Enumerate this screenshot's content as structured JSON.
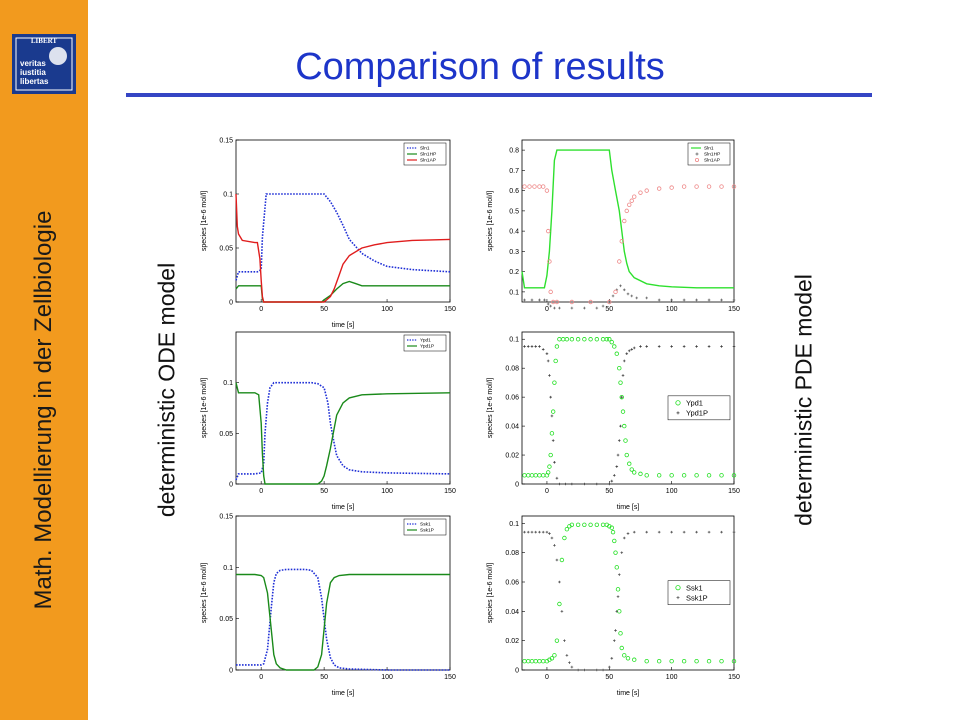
{
  "slide": {
    "title": "Comparison of results",
    "sidebar_text": "Math. Modellierung in der Zellbiologie",
    "logo_motto": [
      "veritas",
      "iustitia",
      "libertas"
    ],
    "logo_banner": "LIBERT",
    "left_label": "deterministic ODE model",
    "right_label": "deterministic PDE model",
    "colors": {
      "sidebar": "#f29a1e",
      "title": "#1d35c9",
      "rule": "#3545c4"
    }
  },
  "chart_data": [
    {
      "id": "ode-sln1",
      "type": "line",
      "xlabel": "time [s]",
      "ylabel": "species [1e-6 mol/l]",
      "xlim": [
        -20,
        150
      ],
      "ylim": [
        0,
        0.15
      ],
      "xticks": [
        0,
        50,
        100,
        150
      ],
      "yticks": [
        0,
        0.05,
        0.1,
        0.15
      ],
      "grid": false,
      "legend": "top-right",
      "series": [
        {
          "name": "Sln1",
          "style": "dotted",
          "color": "#1f2fd6",
          "x": [
            -20,
            -18,
            -10,
            -3,
            0,
            1,
            4,
            6,
            10,
            40,
            50,
            55,
            60,
            65,
            70,
            80,
            90,
            100,
            120,
            150
          ],
          "y": [
            0.02,
            0.028,
            0.028,
            0.028,
            0.03,
            0.06,
            0.1,
            0.1,
            0.1,
            0.1,
            0.1,
            0.093,
            0.083,
            0.071,
            0.058,
            0.045,
            0.038,
            0.033,
            0.03,
            0.028
          ]
        },
        {
          "name": "Sln1HP",
          "style": "solid",
          "color": "#1a8a1a",
          "x": [
            -20,
            -18,
            -3,
            0,
            1,
            2,
            5,
            48,
            50,
            55,
            60,
            65,
            70,
            75,
            80,
            100,
            150
          ],
          "y": [
            0.012,
            0.015,
            0.015,
            0.015,
            0.003,
            0,
            0,
            0,
            0.002,
            0.006,
            0.012,
            0.017,
            0.019,
            0.017,
            0.015,
            0.015,
            0.015
          ]
        },
        {
          "name": "Sln1AP",
          "style": "solid",
          "color": "#e01d1d",
          "x": [
            -20,
            -19,
            -18,
            -15,
            -5,
            -3,
            -1,
            0,
            1,
            2,
            50,
            55,
            58,
            62,
            65,
            70,
            80,
            90,
            100,
            120,
            150
          ],
          "y": [
            0.1,
            0.07,
            0.063,
            0.057,
            0.055,
            0.055,
            0.04,
            0.02,
            0.005,
            0,
            0,
            0.005,
            0.012,
            0.025,
            0.035,
            0.043,
            0.05,
            0.053,
            0.055,
            0.057,
            0.058
          ]
        }
      ]
    },
    {
      "id": "ode-ypd1",
      "type": "line",
      "xlabel": "time [s]",
      "ylabel": "species [1e-6 mol/l]",
      "xlim": [
        -20,
        150
      ],
      "ylim": [
        0,
        0.15
      ],
      "xticks": [
        0,
        50,
        100,
        150
      ],
      "yticks": [
        0,
        0.05,
        0.1
      ],
      "grid": false,
      "legend": "top-right",
      "series": [
        {
          "name": "Ypd1",
          "style": "dotted",
          "color": "#1f2fd6",
          "x": [
            -20,
            -18,
            -5,
            0,
            2,
            3,
            5,
            7,
            10,
            40,
            45,
            50,
            53,
            55,
            58,
            60,
            65,
            70,
            80,
            100,
            150
          ],
          "y": [
            0.004,
            0.01,
            0.01,
            0.011,
            0.02,
            0.05,
            0.08,
            0.095,
            0.1,
            0.1,
            0.099,
            0.095,
            0.08,
            0.06,
            0.04,
            0.028,
            0.018,
            0.014,
            0.012,
            0.011,
            0.01
          ]
        },
        {
          "name": "Ypd1P",
          "style": "solid",
          "color": "#1a8a1a",
          "x": [
            -20,
            -18,
            -5,
            -2,
            0,
            1,
            2,
            3,
            5,
            45,
            48,
            50,
            52,
            55,
            58,
            60,
            65,
            70,
            80,
            100,
            150
          ],
          "y": [
            0.1,
            0.09,
            0.09,
            0.088,
            0.06,
            0.03,
            0.008,
            0,
            0,
            0,
            0.003,
            0.008,
            0.018,
            0.035,
            0.055,
            0.068,
            0.08,
            0.085,
            0.088,
            0.089,
            0.09
          ]
        }
      ]
    },
    {
      "id": "ode-ssk1",
      "type": "line",
      "xlabel": "time [s]",
      "ylabel": "species [1e-6 mol/l]",
      "xlim": [
        -20,
        150
      ],
      "ylim": [
        0,
        0.15
      ],
      "xticks": [
        0,
        50,
        100,
        150
      ],
      "yticks": [
        0,
        0.05,
        0.1,
        0.15
      ],
      "grid": false,
      "legend": "top-right",
      "series": [
        {
          "name": "Ssk1",
          "style": "dotted",
          "color": "#1f2fd6",
          "x": [
            -20,
            -15,
            -5,
            0,
            2,
            5,
            8,
            10,
            12,
            15,
            20,
            35,
            40,
            45,
            48,
            50,
            52,
            55,
            58,
            62,
            70,
            100,
            150
          ],
          "y": [
            0.005,
            0.005,
            0.005,
            0.005,
            0.006,
            0.02,
            0.06,
            0.085,
            0.094,
            0.097,
            0.098,
            0.098,
            0.097,
            0.09,
            0.07,
            0.05,
            0.03,
            0.012,
            0.005,
            0.002,
            0.001,
            0,
            0
          ]
        },
        {
          "name": "Ssk1P",
          "style": "solid",
          "color": "#1a8a1a",
          "x": [
            -20,
            -15,
            -5,
            0,
            2,
            5,
            8,
            10,
            12,
            15,
            20,
            42,
            45,
            48,
            50,
            52,
            55,
            58,
            62,
            70,
            100,
            150
          ],
          "y": [
            0.093,
            0.093,
            0.093,
            0.092,
            0.09,
            0.075,
            0.04,
            0.015,
            0.006,
            0.002,
            0,
            0,
            0.003,
            0.015,
            0.04,
            0.065,
            0.085,
            0.09,
            0.092,
            0.093,
            0.093,
            0.093
          ]
        }
      ]
    },
    {
      "id": "pde-sln1",
      "type": "line",
      "xlabel": "",
      "ylabel": "species [1e-6 mol/l]",
      "xlim": [
        -20,
        150
      ],
      "ylim": [
        0.05,
        0.85
      ],
      "xticks": [
        0,
        50,
        100,
        150
      ],
      "yticks": [
        0.1,
        0.2,
        0.3,
        0.4,
        0.5,
        0.6,
        0.7,
        0.8
      ],
      "grid": false,
      "legend": "top-right",
      "series": [
        {
          "name": "Sln1",
          "style": "solid",
          "color": "#2ee02e",
          "x": [
            -20,
            -18,
            -2,
            0,
            2,
            4,
            6,
            8,
            12,
            50,
            52,
            55,
            58,
            60,
            62,
            64,
            66,
            70,
            80,
            90,
            100,
            120,
            150
          ],
          "y": [
            0.2,
            0.12,
            0.12,
            0.18,
            0.3,
            0.5,
            0.75,
            0.8,
            0.8,
            0.8,
            0.7,
            0.6,
            0.5,
            0.4,
            0.3,
            0.24,
            0.2,
            0.17,
            0.14,
            0.13,
            0.125,
            0.12,
            0.12
          ]
        },
        {
          "name": "Sln1HP",
          "style": "markers",
          "marker": "star",
          "color": "#555555",
          "x": [
            -18,
            -12,
            -6,
            -2,
            1,
            3,
            6,
            10,
            20,
            30,
            40,
            45,
            50,
            53,
            56,
            59,
            62,
            65,
            68,
            72,
            80,
            90,
            100,
            110,
            120,
            130,
            140,
            150
          ],
          "y": [
            0.06,
            0.06,
            0.06,
            0.06,
            0.04,
            0.03,
            0.02,
            0.02,
            0.02,
            0.02,
            0.02,
            0.03,
            0.05,
            0.08,
            0.11,
            0.13,
            0.11,
            0.09,
            0.08,
            0.07,
            0.07,
            0.06,
            0.06,
            0.06,
            0.06,
            0.06,
            0.06,
            0.06
          ]
        },
        {
          "name": "Sln1AP",
          "style": "markers",
          "marker": "circle",
          "color": "#ee8888",
          "x": [
            -18,
            -14,
            -10,
            -6,
            -3,
            0,
            1,
            2,
            3,
            5,
            8,
            20,
            35,
            50,
            55,
            58,
            60,
            62,
            64,
            66,
            68,
            70,
            75,
            80,
            90,
            100,
            110,
            120,
            130,
            140,
            150
          ],
          "y": [
            0.62,
            0.62,
            0.62,
            0.62,
            0.62,
            0.6,
            0.4,
            0.25,
            0.1,
            0.05,
            0.05,
            0.05,
            0.05,
            0.05,
            0.1,
            0.25,
            0.35,
            0.45,
            0.5,
            0.53,
            0.55,
            0.57,
            0.59,
            0.6,
            0.61,
            0.615,
            0.62,
            0.62,
            0.62,
            0.62,
            0.62
          ]
        }
      ]
    },
    {
      "id": "pde-ypd1",
      "type": "line",
      "xlabel": "time [s]",
      "ylabel": "species [1e-6 mol/l]",
      "xlim": [
        -20,
        150
      ],
      "ylim": [
        0,
        0.105
      ],
      "xticks": [
        0,
        50,
        100,
        150
      ],
      "yticks": [
        0,
        0.02,
        0.04,
        0.06,
        0.08,
        0.1
      ],
      "grid": false,
      "legend": "center-right",
      "series": [
        {
          "name": "Ypd1",
          "style": "markers",
          "marker": "circle",
          "color": "#22e022",
          "x": [
            -18,
            -15,
            -12,
            -9,
            -6,
            -3,
            0,
            1,
            2,
            3,
            4,
            5,
            6,
            7,
            8,
            10,
            13,
            16,
            20,
            25,
            30,
            35,
            40,
            45,
            48,
            50,
            52,
            54,
            56,
            58,
            59,
            60,
            61,
            62,
            63,
            64,
            66,
            68,
            70,
            75,
            80,
            90,
            100,
            110,
            120,
            130,
            140,
            150
          ],
          "y": [
            0.006,
            0.006,
            0.006,
            0.006,
            0.006,
            0.006,
            0.006,
            0.008,
            0.012,
            0.02,
            0.035,
            0.05,
            0.07,
            0.085,
            0.095,
            0.1,
            0.1,
            0.1,
            0.1,
            0.1,
            0.1,
            0.1,
            0.1,
            0.1,
            0.1,
            0.1,
            0.098,
            0.095,
            0.09,
            0.08,
            0.07,
            0.06,
            0.05,
            0.04,
            0.03,
            0.02,
            0.014,
            0.01,
            0.008,
            0.007,
            0.006,
            0.006,
            0.006,
            0.006,
            0.006,
            0.006,
            0.006,
            0.006
          ]
        },
        {
          "name": "Ypd1P",
          "style": "markers",
          "marker": "star",
          "color": "#333333",
          "x": [
            -18,
            -15,
            -12,
            -9,
            -6,
            -3,
            0,
            1,
            2,
            3,
            4,
            5,
            6,
            8,
            10,
            15,
            20,
            30,
            40,
            50,
            52,
            54,
            56,
            57,
            58,
            59,
            60,
            61,
            62,
            64,
            66,
            68,
            70,
            75,
            80,
            90,
            100,
            110,
            120,
            130,
            140,
            150
          ],
          "y": [
            0.095,
            0.095,
            0.095,
            0.095,
            0.095,
            0.093,
            0.09,
            0.085,
            0.075,
            0.06,
            0.047,
            0.03,
            0.015,
            0.004,
            0,
            0,
            0,
            0,
            0,
            0,
            0.002,
            0.006,
            0.012,
            0.02,
            0.03,
            0.04,
            0.06,
            0.075,
            0.085,
            0.09,
            0.092,
            0.093,
            0.094,
            0.095,
            0.095,
            0.095,
            0.095,
            0.095,
            0.095,
            0.095,
            0.095,
            0.095
          ]
        }
      ]
    },
    {
      "id": "pde-ssk1",
      "type": "line",
      "xlabel": "time [s]",
      "ylabel": "species [1e-6 mol/l]",
      "xlim": [
        -20,
        150
      ],
      "ylim": [
        0,
        0.105
      ],
      "xticks": [
        0,
        50,
        100,
        150
      ],
      "yticks": [
        0,
        0.02,
        0.04,
        0.06,
        0.08,
        0.1
      ],
      "grid": false,
      "legend": "center-right",
      "series": [
        {
          "name": "Ssk1",
          "style": "markers",
          "marker": "circle",
          "color": "#22e022",
          "x": [
            -18,
            -15,
            -12,
            -9,
            -6,
            -3,
            0,
            2,
            4,
            6,
            8,
            10,
            12,
            14,
            16,
            18,
            20,
            25,
            30,
            35,
            40,
            45,
            48,
            50,
            52,
            53,
            54,
            55,
            56,
            57,
            58,
            59,
            60,
            62,
            65,
            70,
            80,
            90,
            100,
            110,
            120,
            130,
            140,
            150
          ],
          "y": [
            0.006,
            0.006,
            0.006,
            0.006,
            0.006,
            0.006,
            0.006,
            0.007,
            0.008,
            0.01,
            0.02,
            0.045,
            0.075,
            0.09,
            0.096,
            0.098,
            0.099,
            0.099,
            0.099,
            0.099,
            0.099,
            0.099,
            0.099,
            0.098,
            0.097,
            0.094,
            0.088,
            0.08,
            0.07,
            0.055,
            0.04,
            0.025,
            0.015,
            0.01,
            0.008,
            0.007,
            0.006,
            0.006,
            0.006,
            0.006,
            0.006,
            0.006,
            0.006,
            0.006
          ]
        },
        {
          "name": "Ssk1P",
          "style": "markers",
          "marker": "star",
          "color": "#444444",
          "x": [
            -18,
            -15,
            -12,
            -9,
            -6,
            -3,
            0,
            2,
            4,
            6,
            8,
            10,
            12,
            14,
            16,
            18,
            20,
            25,
            30,
            40,
            45,
            50,
            52,
            54,
            55,
            56,
            57,
            58,
            60,
            62,
            65,
            70,
            80,
            90,
            100,
            110,
            120,
            130,
            140,
            150
          ],
          "y": [
            0.094,
            0.094,
            0.094,
            0.094,
            0.094,
            0.094,
            0.094,
            0.093,
            0.09,
            0.085,
            0.075,
            0.06,
            0.04,
            0.02,
            0.01,
            0.005,
            0.002,
            0,
            0,
            0,
            0,
            0.002,
            0.008,
            0.02,
            0.027,
            0.04,
            0.05,
            0.065,
            0.08,
            0.09,
            0.093,
            0.094,
            0.094,
            0.094,
            0.094,
            0.094,
            0.094,
            0.094,
            0.094,
            0.094
          ]
        }
      ]
    }
  ]
}
